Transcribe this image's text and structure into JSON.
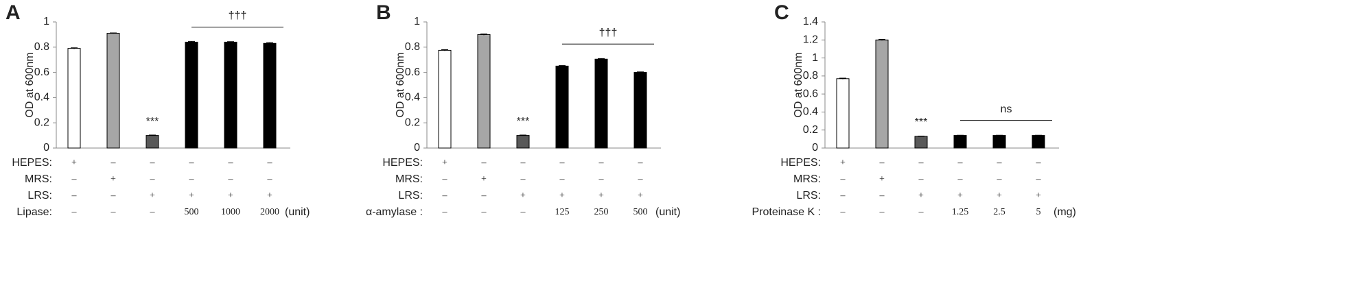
{
  "chart_data": [
    {
      "type": "bar",
      "panel": "A",
      "y_label": "OD at 600nm",
      "ylim": [
        0,
        1
      ],
      "yticks": [
        0,
        0.2,
        0.4,
        0.6,
        0.8,
        1
      ],
      "values": [
        0.79,
        0.91,
        0.1,
        0.84,
        0.84,
        0.83
      ],
      "errors": [
        0.005,
        0.003,
        0.003,
        0.006,
        0.004,
        0.006
      ],
      "colors": [
        "#ffffff",
        "#a6a6a6",
        "#595959",
        "#000000",
        "#000000",
        "#000000"
      ],
      "control_mark": "***",
      "treatment_mark": "†††",
      "conditions": [
        {
          "label": "HEPES:",
          "cells": [
            "+",
            "–",
            "–",
            "–",
            "–",
            "–"
          ]
        },
        {
          "label": "MRS:",
          "cells": [
            "–",
            "+",
            "–",
            "–",
            "–",
            "–"
          ]
        },
        {
          "label": "LRS:",
          "cells": [
            "–",
            "–",
            "+",
            "+",
            "+",
            "+"
          ]
        },
        {
          "label": "Lipase:",
          "cells": [
            "–",
            "–",
            "–",
            "500",
            "1000",
            "2000"
          ],
          "unit": "(unit)"
        }
      ]
    },
    {
      "type": "bar",
      "panel": "B",
      "y_label": "OD at 600nm",
      "ylim": [
        0,
        1
      ],
      "yticks": [
        0,
        0.2,
        0.4,
        0.6,
        0.8,
        1
      ],
      "values": [
        0.775,
        0.9,
        0.1,
        0.65,
        0.705,
        0.6
      ],
      "errors": [
        0.005,
        0.005,
        0.003,
        0.004,
        0.005,
        0.004
      ],
      "colors": [
        "#ffffff",
        "#a6a6a6",
        "#595959",
        "#000000",
        "#000000",
        "#000000"
      ],
      "control_mark": "***",
      "treatment_mark": "†††",
      "conditions": [
        {
          "label": "HEPES:",
          "cells": [
            "+",
            "–",
            "–",
            "–",
            "–",
            "–"
          ]
        },
        {
          "label": "MRS:",
          "cells": [
            "–",
            "+",
            "–",
            "–",
            "–",
            "–"
          ]
        },
        {
          "label": "LRS:",
          "cells": [
            "–",
            "–",
            "+",
            "+",
            "+",
            "+"
          ]
        },
        {
          "label": "α-amylase :",
          "cells": [
            "–",
            "–",
            "–",
            "125",
            "250",
            "500"
          ],
          "unit": "(unit)"
        }
      ]
    },
    {
      "type": "bar",
      "panel": "C",
      "y_label": "OD at 600nm",
      "ylim": [
        0,
        1.4
      ],
      "yticks": [
        0,
        0.2,
        0.4,
        0.6,
        0.8,
        1,
        1.2,
        1.4
      ],
      "values": [
        0.77,
        1.2,
        0.13,
        0.14,
        0.14,
        0.14
      ],
      "errors": [
        0.006,
        0.006,
        0.003,
        0.003,
        0.003,
        0.003
      ],
      "colors": [
        "#ffffff",
        "#a6a6a6",
        "#595959",
        "#000000",
        "#000000",
        "#000000"
      ],
      "control_mark": "***",
      "treatment_mark": "ns",
      "conditions": [
        {
          "label": "HEPES:",
          "cells": [
            "+",
            "–",
            "–",
            "–",
            "–",
            "–"
          ]
        },
        {
          "label": "MRS:",
          "cells": [
            "–",
            "+",
            "–",
            "–",
            "–",
            "–"
          ]
        },
        {
          "label": "LRS:",
          "cells": [
            "–",
            "–",
            "+",
            "+",
            "+",
            "+"
          ]
        },
        {
          "label": "Proteinase K :",
          "cells": [
            "–",
            "–",
            "–",
            "1.25",
            "2.5",
            "5"
          ],
          "unit": "(mg)"
        }
      ]
    }
  ]
}
